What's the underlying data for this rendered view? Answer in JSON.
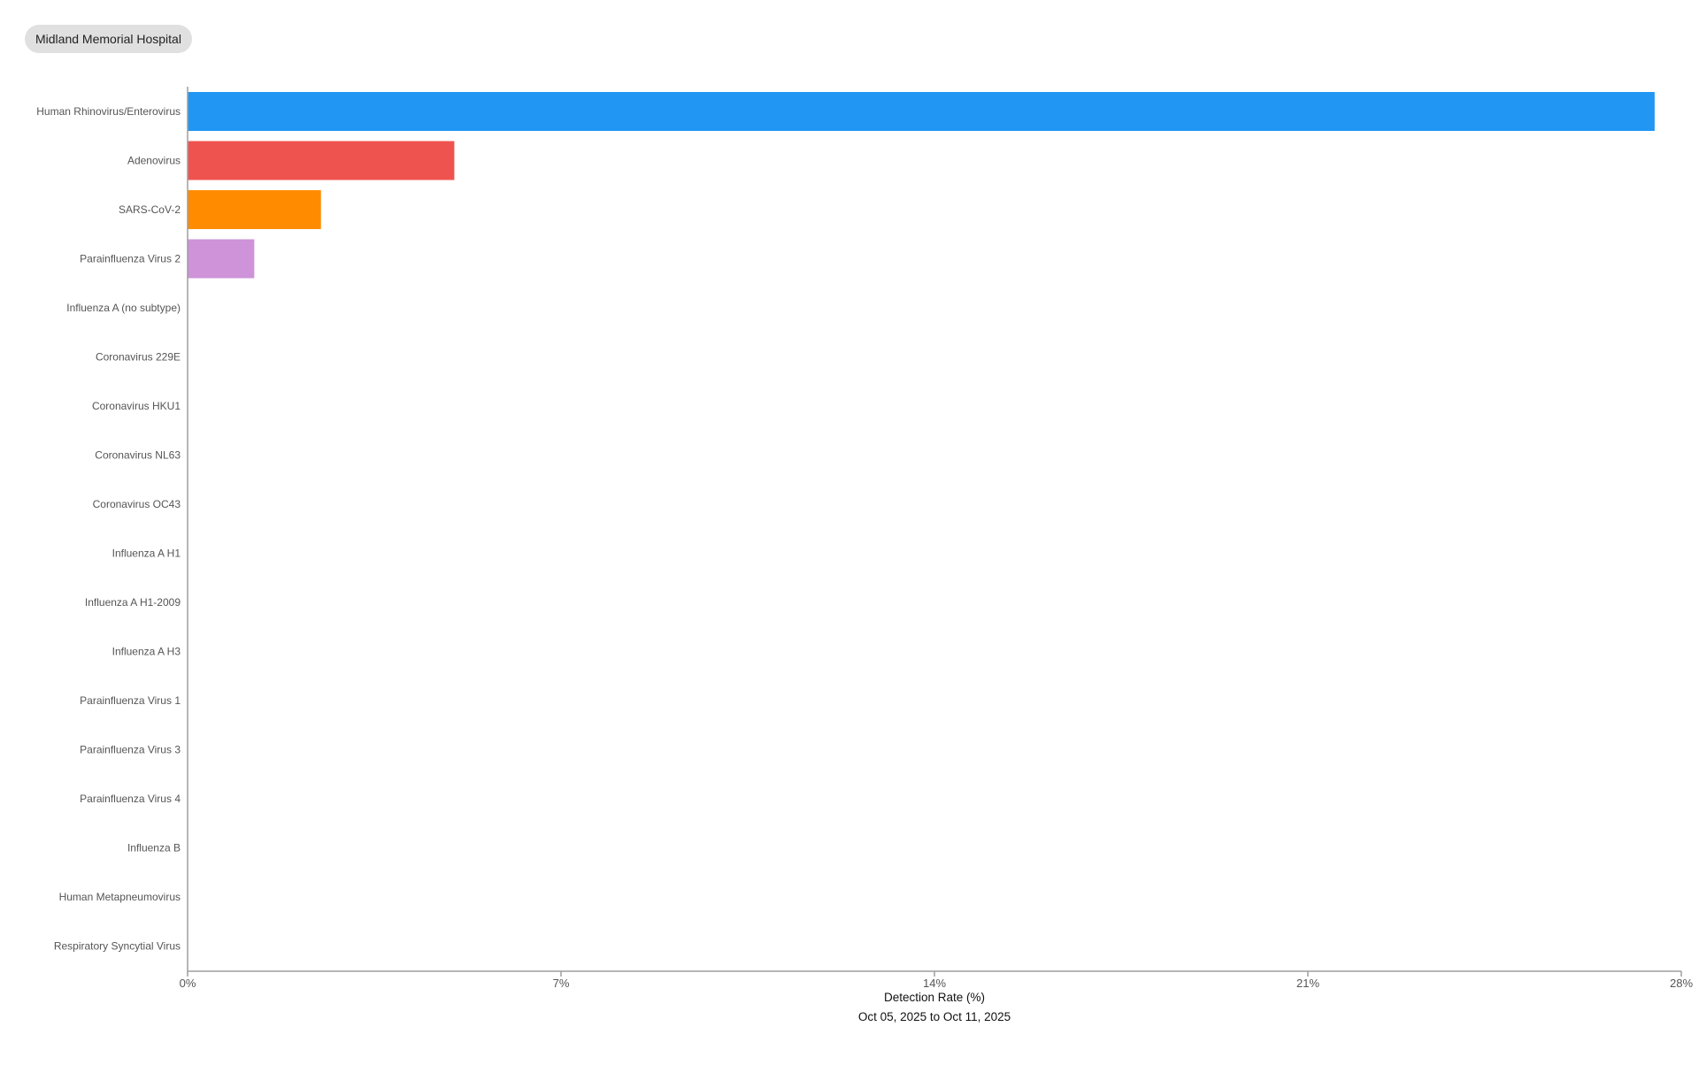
{
  "header": {
    "hospital_label": "Midland Memorial Hospital"
  },
  "chart_data": {
    "type": "bar",
    "orientation": "horizontal",
    "categories": [
      "Human Rhinovirus/Enterovirus",
      "Adenovirus",
      "SARS-CoV-2",
      "Parainfluenza Virus 2",
      "Influenza A (no subtype)",
      "Coronavirus 229E",
      "Coronavirus HKU1",
      "Coronavirus NL63",
      "Coronavirus OC43",
      "Influenza A H1",
      "Influenza A H1-2009",
      "Influenza A H3",
      "Parainfluenza Virus 1",
      "Parainfluenza Virus 3",
      "Parainfluenza Virus 4",
      "Influenza B",
      "Human Metapneumovirus",
      "Respiratory Syncytial Virus"
    ],
    "values": [
      27.5,
      5.0,
      2.5,
      1.25,
      0,
      0,
      0,
      0,
      0,
      0,
      0,
      0,
      0,
      0,
      0,
      0,
      0,
      0
    ],
    "colors": [
      "#2196f3",
      "#ef5350",
      "#ff8c00",
      "#ce93d8"
    ],
    "xlim": [
      0,
      28
    ],
    "x_ticks": [
      0,
      7,
      14,
      21,
      28
    ],
    "x_tick_labels": [
      "0%",
      "7%",
      "14%",
      "21%",
      "28%"
    ],
    "xlabel": "Detection Rate (%)",
    "date_range": "Oct 05, 2025 to Oct 11, 2025",
    "grid": false,
    "legend": false
  }
}
